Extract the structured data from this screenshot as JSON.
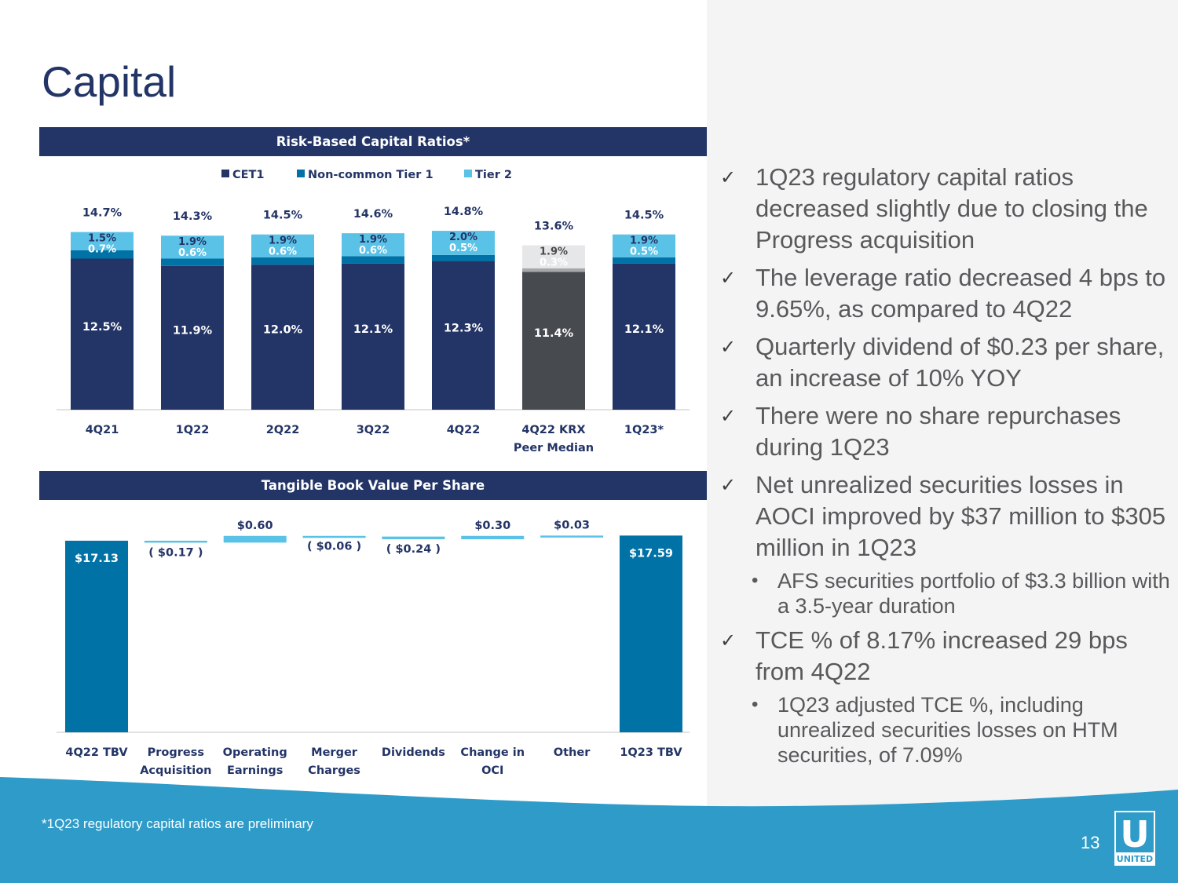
{
  "title": "Capital",
  "colors": {
    "navy": "#233466",
    "mid_blue": "#0072a6",
    "light_blue": "#5bc2e7",
    "peer_dark": "#474a4f",
    "peer_mid": "#a5a7aa",
    "peer_light": "#e6e7e8",
    "footer_blue": "#2e9bc9"
  },
  "chart_data": [
    {
      "type": "bar",
      "stacked": true,
      "title": "Risk-Based Capital Ratios*",
      "legend": [
        "CET1",
        "Non-common Tier 1",
        "Tier 2"
      ],
      "legend_position": "top-center",
      "categories": [
        "4Q21",
        "1Q22",
        "2Q22",
        "3Q22",
        "4Q22",
        "4Q22 KRX\nPeer Median",
        "1Q23*"
      ],
      "series": [
        {
          "name": "CET1",
          "values": [
            12.5,
            11.9,
            12.0,
            12.1,
            12.3,
            11.4,
            12.1
          ],
          "labels": [
            "12.5%",
            "11.9%",
            "12.0%",
            "12.1%",
            "12.3%",
            "11.4%",
            "12.1%"
          ]
        },
        {
          "name": "Non-common Tier 1",
          "values": [
            0.7,
            0.6,
            0.6,
            0.6,
            0.5,
            0.3,
            0.5
          ],
          "labels": [
            "0.7%",
            "0.6%",
            "0.6%",
            "0.6%",
            "0.5%",
            "0.3%",
            "0.5%"
          ]
        },
        {
          "name": "Tier 2",
          "values": [
            1.5,
            1.9,
            1.9,
            1.9,
            2.0,
            1.9,
            1.9
          ],
          "labels": [
            "1.5%",
            "1.9%",
            "1.9%",
            "1.9%",
            "2.0%",
            "1.9%",
            "1.9%"
          ]
        }
      ],
      "totals": [
        "14.7%",
        "14.3%",
        "14.5%",
        "14.6%",
        "14.8%",
        "13.6%",
        "14.5%"
      ],
      "highlight_category": "4Q22 KRX\nPeer Median",
      "ylim": [
        0,
        16
      ]
    },
    {
      "type": "bar",
      "subtype": "waterfall",
      "title": "Tangible Book Value Per Share",
      "categories": [
        "4Q22 TBV",
        "Progress\nAcquisition",
        "Operating\nEarnings",
        "Merger\nCharges",
        "Dividends",
        "Change in\nOCI",
        "Other",
        "1Q23 TBV"
      ],
      "values": [
        17.13,
        -0.17,
        0.6,
        -0.06,
        -0.24,
        0.3,
        0.03,
        17.59
      ],
      "kinds": [
        "total",
        "delta",
        "delta",
        "delta",
        "delta",
        "delta",
        "delta",
        "total"
      ],
      "labels": [
        "$17.13",
        "( $0.17 )",
        "$0.60",
        "( $0.06 )",
        "( $0.24 )",
        "$0.30",
        "$0.03",
        "$17.59"
      ]
    }
  ],
  "bullets": [
    {
      "text": "1Q23 regulatory capital ratios decreased slightly due to closing the Progress acquisition",
      "sub": []
    },
    {
      "text": "The leverage ratio decreased 4 bps to 9.65%, as compared to 4Q22",
      "sub": []
    },
    {
      "text": "Quarterly dividend of $0.23 per share, an increase of 10% YOY",
      "sub": []
    },
    {
      "text": "There were no share repurchases during 1Q23",
      "sub": []
    },
    {
      "text": "Net unrealized securities losses in AOCI improved by $37 million to $305 million in 1Q23",
      "sub": [
        "AFS securities portfolio of $3.3 billion with a 3.5-year duration"
      ]
    },
    {
      "text": "TCE % of 8.17% increased 29 bps from 4Q22",
      "sub": [
        "1Q23 adjusted TCE %, including unrealized securities losses on HTM securities, of 7.09%"
      ]
    }
  ],
  "footnote": "*1Q23 regulatory capital ratios are preliminary",
  "page_number": "13",
  "logo": {
    "letter": "U",
    "text": "UNITED"
  }
}
